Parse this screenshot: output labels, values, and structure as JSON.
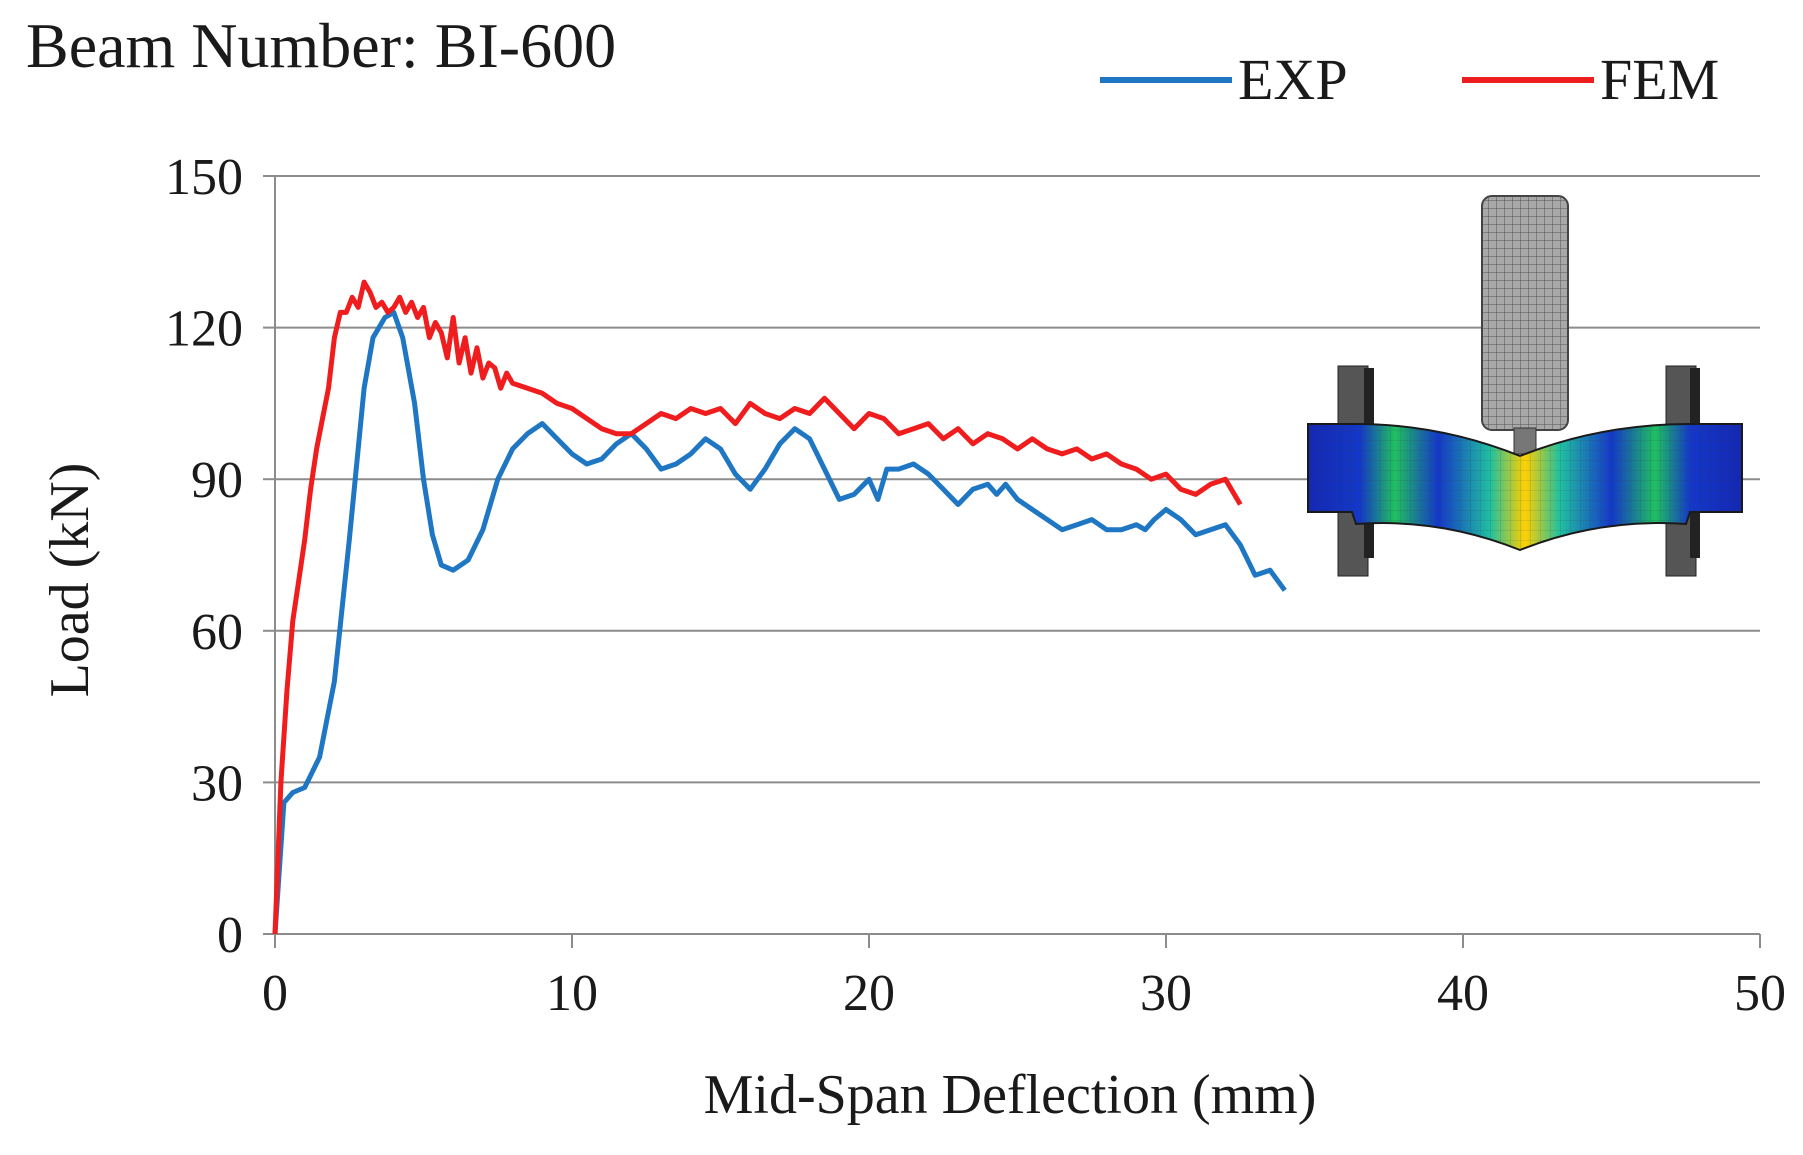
{
  "chart_data": {
    "type": "line",
    "title": "Beam Number: BI-600",
    "xlabel": "Mid-Span Deflection (mm)",
    "ylabel": "Load (kN)",
    "xlim": [
      0,
      50
    ],
    "ylim": [
      0,
      150
    ],
    "xticks": [
      "0",
      "10",
      "20",
      "30",
      "40",
      "50"
    ],
    "yticks": [
      "0",
      "30",
      "60",
      "90",
      "120",
      "150"
    ],
    "grid": "horizontal",
    "legend_position": "top-right",
    "series": [
      {
        "name": "EXP",
        "color": "#1f77c4",
        "x": [
          0,
          0.3,
          0.6,
          1.0,
          1.5,
          2.0,
          2.5,
          3.0,
          3.3,
          3.7,
          4.0,
          4.3,
          4.7,
          5.0,
          5.3,
          5.6,
          6.0,
          6.5,
          7.0,
          7.5,
          8.0,
          8.5,
          9.0,
          9.5,
          10.0,
          10.5,
          11.0,
          11.5,
          12.0,
          12.5,
          13.0,
          13.5,
          14.0,
          14.5,
          15.0,
          15.5,
          16.0,
          16.5,
          17.0,
          17.5,
          18.0,
          18.5,
          19.0,
          19.5,
          20.0,
          20.3,
          20.6,
          21.0,
          21.5,
          22.0,
          22.5,
          23.0,
          23.5,
          24.0,
          24.3,
          24.6,
          25.0,
          25.5,
          26.0,
          26.5,
          27.0,
          27.5,
          28.0,
          28.5,
          29.0,
          29.3,
          29.6,
          30.0,
          30.5,
          31.0,
          31.5,
          32.0,
          32.5,
          33.0,
          33.5,
          34.0
        ],
        "y": [
          0,
          26,
          28,
          29,
          35,
          50,
          78,
          108,
          118,
          122,
          123,
          118,
          105,
          90,
          79,
          73,
          72,
          74,
          80,
          90,
          96,
          99,
          101,
          98,
          95,
          93,
          94,
          97,
          99,
          96,
          92,
          93,
          95,
          98,
          96,
          91,
          88,
          92,
          97,
          100,
          98,
          92,
          86,
          87,
          90,
          86,
          92,
          92,
          93,
          91,
          88,
          85,
          88,
          89,
          87,
          89,
          86,
          84,
          82,
          80,
          81,
          82,
          80,
          80,
          81,
          80,
          82,
          84,
          82,
          79,
          80,
          81,
          77,
          71,
          72,
          68
        ]
      },
      {
        "name": "FEM",
        "color": "#ef1d1d",
        "x": [
          0,
          0.2,
          0.4,
          0.6,
          0.8,
          1.0,
          1.2,
          1.4,
          1.6,
          1.8,
          2.0,
          2.2,
          2.4,
          2.6,
          2.8,
          3.0,
          3.2,
          3.4,
          3.6,
          3.8,
          4.0,
          4.2,
          4.4,
          4.6,
          4.8,
          5.0,
          5.2,
          5.4,
          5.6,
          5.8,
          6.0,
          6.2,
          6.4,
          6.6,
          6.8,
          7.0,
          7.2,
          7.4,
          7.6,
          7.8,
          8.0,
          8.5,
          9.0,
          9.5,
          10.0,
          10.5,
          11.0,
          11.5,
          12.0,
          12.5,
          13.0,
          13.5,
          14.0,
          14.5,
          15.0,
          15.5,
          16.0,
          16.5,
          17.0,
          17.5,
          18.0,
          18.5,
          19.0,
          19.5,
          20.0,
          20.5,
          21.0,
          21.5,
          22.0,
          22.5,
          23.0,
          23.5,
          24.0,
          24.5,
          25.0,
          25.5,
          26.0,
          26.5,
          27.0,
          27.5,
          28.0,
          28.5,
          29.0,
          29.5,
          30.0,
          30.5,
          31.0,
          31.5,
          32.0,
          32.5
        ],
        "y": [
          0,
          30,
          48,
          62,
          70,
          78,
          88,
          96,
          102,
          108,
          118,
          123,
          123,
          126,
          124,
          129,
          127,
          124,
          125,
          123,
          124,
          126,
          123,
          125,
          122,
          124,
          118,
          121,
          119,
          114,
          122,
          113,
          118,
          111,
          116,
          110,
          113,
          112,
          108,
          111,
          109,
          108,
          107,
          105,
          104,
          102,
          100,
          99,
          99,
          101,
          103,
          102,
          104,
          103,
          104,
          101,
          105,
          103,
          102,
          104,
          103,
          106,
          103,
          100,
          103,
          102,
          99,
          100,
          101,
          98,
          100,
          97,
          99,
          98,
          96,
          98,
          96,
          95,
          96,
          94,
          95,
          93,
          92,
          90,
          91,
          88,
          87,
          89,
          90,
          85
        ]
      }
    ]
  }
}
